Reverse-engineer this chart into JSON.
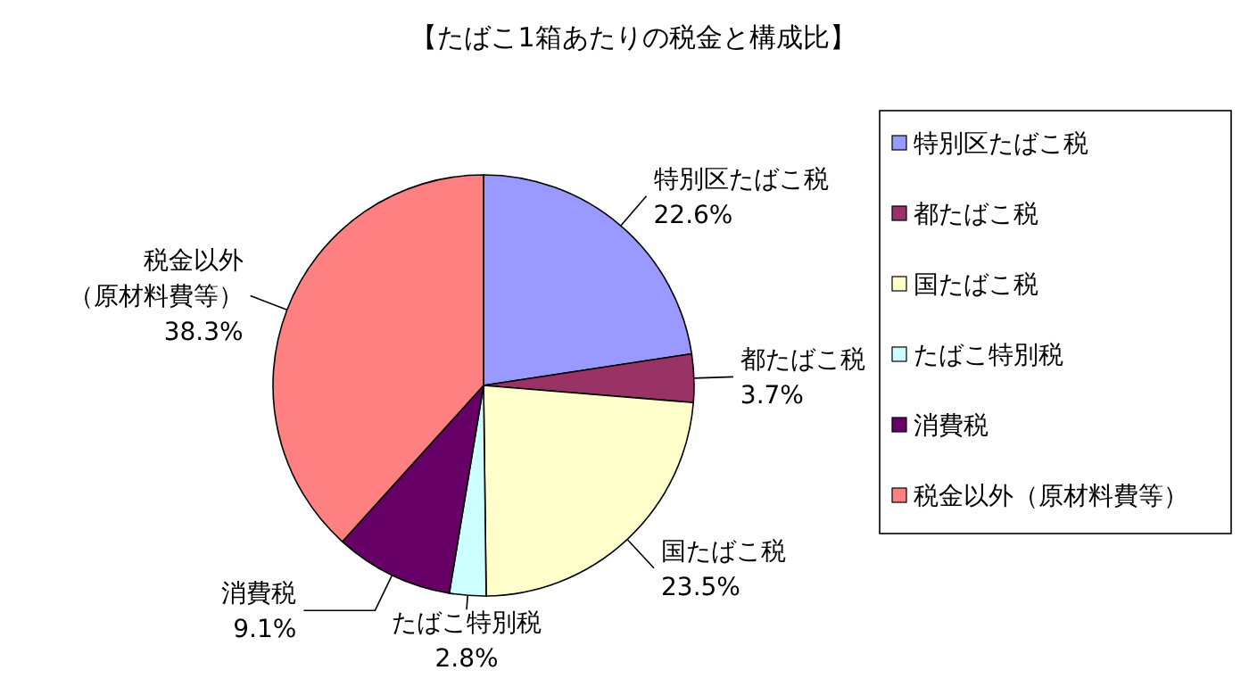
{
  "chart_data": {
    "type": "pie",
    "title": "【たばこ1箱あたりの税金と構成比】",
    "categories": [
      "特別区たばこ税",
      "都たばこ税",
      "国たばこ税",
      "たばこ特別税",
      "消費税",
      "税金以外（原材料費等）"
    ],
    "values": [
      22.6,
      3.7,
      23.5,
      2.8,
      9.1,
      38.3
    ],
    "value_labels": [
      "22.6%",
      "3.7%",
      "23.5%",
      "2.8%",
      "9.1%",
      "38.3%"
    ],
    "colors": [
      "#9999ff",
      "#993366",
      "#ffffcc",
      "#ccffff",
      "#660066",
      "#ff8080"
    ],
    "legend": "right"
  }
}
